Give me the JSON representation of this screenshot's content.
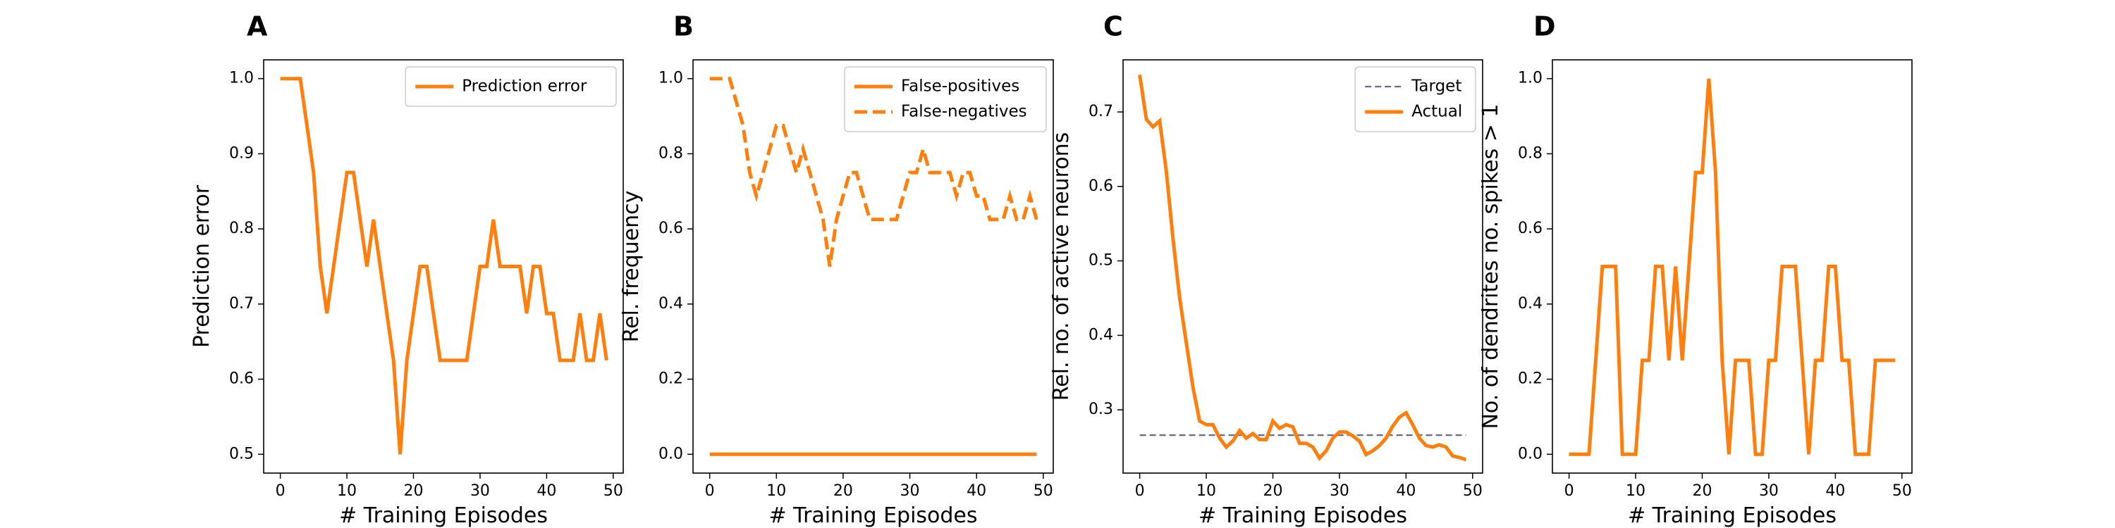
{
  "figure": {
    "colors": {
      "series": "#ff7f0e",
      "target": "#6a6a88",
      "axes": "#000000",
      "legend_border": "#cccccc"
    }
  },
  "chart_data": [
    {
      "panel": "A",
      "type": "line",
      "xlabel": "# Training Episodes",
      "ylabel": "Prediction error",
      "xlim": [
        -2.5,
        51.5
      ],
      "ylim": [
        0.475,
        1.025
      ],
      "xticks": [
        0,
        10,
        20,
        30,
        40,
        50
      ],
      "yticks": [
        0.5,
        0.6,
        0.7,
        0.8,
        0.9,
        1.0
      ],
      "ytick_decimals": 1,
      "legend": "top-right",
      "x": [
        0,
        1,
        2,
        3,
        4,
        5,
        6,
        7,
        8,
        9,
        10,
        11,
        12,
        13,
        14,
        15,
        16,
        17,
        18,
        19,
        20,
        21,
        22,
        23,
        24,
        25,
        26,
        27,
        28,
        29,
        30,
        31,
        32,
        33,
        34,
        35,
        36,
        37,
        38,
        39,
        40,
        41,
        42,
        43,
        44,
        45,
        46,
        47,
        48,
        49
      ],
      "series": [
        {
          "name": "Prediction error",
          "style": "solid",
          "values": [
            1.0,
            1.0,
            1.0,
            1.0,
            0.9375,
            0.875,
            0.75,
            0.6875,
            0.75,
            0.8125,
            0.875,
            0.875,
            0.8125,
            0.75,
            0.8125,
            0.75,
            0.6875,
            0.625,
            0.5,
            0.625,
            0.6875,
            0.75,
            0.75,
            0.6875,
            0.625,
            0.625,
            0.625,
            0.625,
            0.625,
            0.6875,
            0.75,
            0.75,
            0.8125,
            0.75,
            0.75,
            0.75,
            0.75,
            0.6875,
            0.75,
            0.75,
            0.6875,
            0.6875,
            0.625,
            0.625,
            0.625,
            0.6875,
            0.625,
            0.625,
            0.6875,
            0.625
          ]
        }
      ]
    },
    {
      "panel": "B",
      "type": "line",
      "xlabel": "# Training Episodes",
      "ylabel": "Rel. frequency",
      "xlim": [
        -2.5,
        51.5
      ],
      "ylim": [
        -0.05,
        1.05
      ],
      "xticks": [
        0,
        10,
        20,
        30,
        40,
        50
      ],
      "yticks": [
        0.0,
        0.2,
        0.4,
        0.6,
        0.8,
        1.0
      ],
      "ytick_decimals": 1,
      "legend": "top-right",
      "x": [
        0,
        1,
        2,
        3,
        4,
        5,
        6,
        7,
        8,
        9,
        10,
        11,
        12,
        13,
        14,
        15,
        16,
        17,
        18,
        19,
        20,
        21,
        22,
        23,
        24,
        25,
        26,
        27,
        28,
        29,
        30,
        31,
        32,
        33,
        34,
        35,
        36,
        37,
        38,
        39,
        40,
        41,
        42,
        43,
        44,
        45,
        46,
        47,
        48,
        49
      ],
      "series": [
        {
          "name": "False-positives",
          "style": "solid",
          "values": [
            0,
            0,
            0,
            0,
            0,
            0,
            0,
            0,
            0,
            0,
            0,
            0,
            0,
            0,
            0,
            0,
            0,
            0,
            0,
            0,
            0,
            0,
            0,
            0,
            0,
            0,
            0,
            0,
            0,
            0,
            0,
            0,
            0,
            0,
            0,
            0,
            0,
            0,
            0,
            0,
            0,
            0,
            0,
            0,
            0,
            0,
            0,
            0,
            0,
            0
          ]
        },
        {
          "name": "False-negatives",
          "style": "dashed",
          "values": [
            1.0,
            1.0,
            1.0,
            1.0,
            0.9375,
            0.875,
            0.75,
            0.6875,
            0.75,
            0.8125,
            0.875,
            0.875,
            0.8125,
            0.75,
            0.8125,
            0.75,
            0.6875,
            0.625,
            0.5,
            0.625,
            0.6875,
            0.75,
            0.75,
            0.6875,
            0.625,
            0.625,
            0.625,
            0.625,
            0.625,
            0.6875,
            0.75,
            0.75,
            0.8125,
            0.75,
            0.75,
            0.75,
            0.75,
            0.6875,
            0.75,
            0.75,
            0.6875,
            0.6875,
            0.625,
            0.625,
            0.625,
            0.6875,
            0.625,
            0.625,
            0.6875,
            0.625
          ]
        }
      ]
    },
    {
      "panel": "C",
      "type": "line",
      "xlabel": "# Training Episodes",
      "ylabel": "Rel. no. of active neurons",
      "xlim": [
        -2.5,
        51.5
      ],
      "ylim": [
        0.215,
        0.77
      ],
      "xticks": [
        0,
        10,
        20,
        30,
        40,
        50
      ],
      "yticks": [
        0.3,
        0.4,
        0.5,
        0.6,
        0.7
      ],
      "ytick_decimals": 1,
      "legend": "top-right",
      "x": [
        0,
        1,
        2,
        3,
        4,
        5,
        6,
        7,
        8,
        9,
        10,
        11,
        12,
        13,
        14,
        15,
        16,
        17,
        18,
        19,
        20,
        21,
        22,
        23,
        24,
        25,
        26,
        27,
        28,
        29,
        30,
        31,
        32,
        33,
        34,
        35,
        36,
        37,
        38,
        39,
        40,
        41,
        42,
        43,
        44,
        45,
        46,
        47,
        48,
        49
      ],
      "series": [
        {
          "name": "Target",
          "style": "dashed-thin",
          "values": [
            0.266,
            0.266,
            0.266,
            0.266,
            0.266,
            0.266,
            0.266,
            0.266,
            0.266,
            0.266,
            0.266,
            0.266,
            0.266,
            0.266,
            0.266,
            0.266,
            0.266,
            0.266,
            0.266,
            0.266,
            0.266,
            0.266,
            0.266,
            0.266,
            0.266,
            0.266,
            0.266,
            0.266,
            0.266,
            0.266,
            0.266,
            0.266,
            0.266,
            0.266,
            0.266,
            0.266,
            0.266,
            0.266,
            0.266,
            0.266,
            0.266,
            0.266,
            0.266,
            0.266,
            0.266,
            0.266,
            0.266,
            0.266,
            0.266,
            0.266
          ]
        },
        {
          "name": "Actual",
          "style": "solid",
          "values": [
            0.75,
            0.69,
            0.68,
            0.688,
            0.62,
            0.53,
            0.45,
            0.39,
            0.33,
            0.285,
            0.28,
            0.28,
            0.262,
            0.25,
            0.258,
            0.272,
            0.262,
            0.268,
            0.26,
            0.26,
            0.285,
            0.275,
            0.28,
            0.277,
            0.255,
            0.255,
            0.25,
            0.235,
            0.245,
            0.262,
            0.27,
            0.27,
            0.265,
            0.258,
            0.24,
            0.245,
            0.252,
            0.262,
            0.278,
            0.29,
            0.296,
            0.28,
            0.262,
            0.252,
            0.25,
            0.253,
            0.25,
            0.238,
            0.236,
            0.233
          ]
        }
      ]
    },
    {
      "panel": "D",
      "type": "line",
      "xlabel": "# Training Episodes",
      "ylabel": "No. of dendrites no. spikes > 1",
      "xlim": [
        -2.5,
        51.5
      ],
      "ylim": [
        -0.05,
        1.05
      ],
      "xticks": [
        0,
        10,
        20,
        30,
        40,
        50
      ],
      "yticks": [
        0.0,
        0.2,
        0.4,
        0.6,
        0.8,
        1.0
      ],
      "ytick_decimals": 1,
      "legend": "none",
      "x": [
        0,
        1,
        2,
        3,
        4,
        5,
        6,
        7,
        8,
        9,
        10,
        11,
        12,
        13,
        14,
        15,
        16,
        17,
        18,
        19,
        20,
        21,
        22,
        23,
        24,
        25,
        26,
        27,
        28,
        29,
        30,
        31,
        32,
        33,
        34,
        35,
        36,
        37,
        38,
        39,
        40,
        41,
        42,
        43,
        44,
        45,
        46,
        47,
        48,
        49
      ],
      "series": [
        {
          "style": "solid",
          "values": [
            0,
            0,
            0,
            0,
            0.25,
            0.5,
            0.5,
            0.5,
            0,
            0,
            0,
            0.25,
            0.25,
            0.5,
            0.5,
            0.25,
            0.5,
            0.25,
            0.5,
            0.75,
            0.75,
            1.0,
            0.75,
            0.25,
            0,
            0.25,
            0.25,
            0.25,
            0,
            0,
            0.25,
            0.25,
            0.5,
            0.5,
            0.5,
            0.25,
            0,
            0.25,
            0.25,
            0.5,
            0.5,
            0.25,
            0.25,
            0,
            0,
            0,
            0.25,
            0.25,
            0.25,
            0.25
          ]
        }
      ]
    }
  ]
}
